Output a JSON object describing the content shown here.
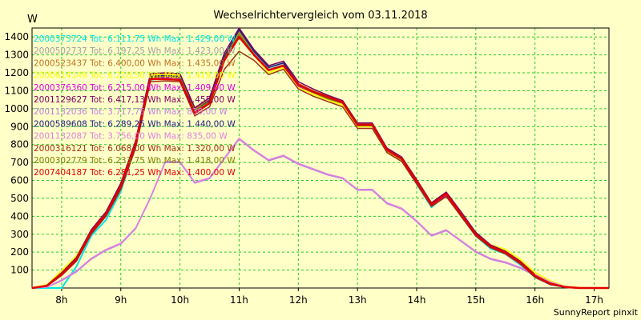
{
  "chart_data": {
    "type": "line",
    "title": "Wechselrichtervergleich vom 03.11.2018",
    "ylabel": "W",
    "xlabel": "",
    "footer": "SunnyReport pinxit",
    "xlim": [
      7.5,
      17.25
    ],
    "ylim": [
      0,
      1450
    ],
    "x_ticks": [
      {
        "value": 8,
        "label": "8h"
      },
      {
        "value": 9,
        "label": "9h"
      },
      {
        "value": 10,
        "label": "10h"
      },
      {
        "value": 11,
        "label": "11h"
      },
      {
        "value": 12,
        "label": "12h"
      },
      {
        "value": 13,
        "label": "13h"
      },
      {
        "value": 14,
        "label": "14h"
      },
      {
        "value": 15,
        "label": "15h"
      },
      {
        "value": 16,
        "label": "16h"
      },
      {
        "value": 17,
        "label": "17h"
      }
    ],
    "y_ticks": [
      100,
      200,
      300,
      400,
      500,
      600,
      700,
      800,
      900,
      1000,
      1100,
      1200,
      1300,
      1400
    ],
    "grid": true,
    "background": "#ffffc8",
    "grid_color": "#22cc22",
    "legend_position": "top-left",
    "x": [
      7.5,
      7.75,
      8.0,
      8.25,
      8.5,
      8.75,
      9.0,
      9.25,
      9.5,
      9.75,
      10.0,
      10.25,
      10.5,
      10.75,
      11.0,
      11.25,
      11.5,
      11.75,
      12.0,
      12.25,
      12.5,
      12.75,
      13.0,
      13.25,
      13.5,
      13.75,
      14.0,
      14.25,
      14.5,
      14.75,
      15.0,
      15.25,
      15.5,
      15.75,
      16.0,
      16.25,
      16.5,
      16.75,
      17.0,
      17.25
    ],
    "series": [
      {
        "name": "2000373724 Tot: 6.111,75 Wh Max: 1.429,00 W",
        "color": "#00e6e6",
        "width": 2,
        "values": [
          0,
          0,
          0,
          120,
          290,
          380,
          540,
          790,
          1160,
          1175,
          1170,
          980,
          1030,
          1280,
          1425,
          1320,
          1230,
          1255,
          1130,
          1100,
          1060,
          1040,
          910,
          915,
          770,
          720,
          580,
          450,
          520,
          400,
          290,
          220,
          190,
          130,
          60,
          20,
          5,
          0,
          0,
          0
        ]
      },
      {
        "name": "2000502737 Tot: 6.197,25 Wh Max: 1.423,00 W",
        "color": "#a0a0a0",
        "width": 1.5,
        "values": [
          0,
          10,
          75,
          150,
          300,
          400,
          560,
          800,
          1175,
          1180,
          1175,
          990,
          1040,
          1280,
          1420,
          1310,
          1220,
          1245,
          1130,
          1090,
          1060,
          1030,
          905,
          905,
          765,
          715,
          590,
          465,
          525,
          410,
          300,
          230,
          195,
          140,
          65,
          25,
          5,
          0,
          0,
          0
        ]
      },
      {
        "name": "2000523437 Tot: 6.400,00 Wh Max: 1.435,00 W",
        "color": "#c07020",
        "width": 1.5,
        "values": [
          0,
          15,
          90,
          175,
          320,
          420,
          580,
          810,
          1190,
          1195,
          1190,
          1000,
          1050,
          1300,
          1432,
          1320,
          1230,
          1255,
          1140,
          1100,
          1070,
          1040,
          915,
          915,
          775,
          725,
          600,
          470,
          530,
          420,
          305,
          235,
          205,
          145,
          75,
          30,
          8,
          0,
          0,
          0
        ]
      },
      {
        "name": "2000614149 Tot: 6.218,50 Wh Max: 1.419,00 W",
        "color": "#ffff00",
        "width": 2,
        "values": [
          0,
          18,
          95,
          180,
          310,
          405,
          570,
          800,
          1185,
          1190,
          1185,
          985,
          1035,
          1275,
          1418,
          1300,
          1200,
          1230,
          1120,
          1080,
          1050,
          1020,
          900,
          900,
          760,
          710,
          590,
          475,
          520,
          415,
          300,
          240,
          215,
          160,
          85,
          40,
          10,
          2,
          0,
          0
        ]
      },
      {
        "name": "2000376360 Tot: 6.215,00 Wh Max: 1.409,00 W",
        "color": "#e000e0",
        "width": 1.5,
        "values": [
          0,
          10,
          70,
          150,
          305,
          405,
          560,
          795,
          1170,
          1175,
          1170,
          980,
          1035,
          1270,
          1405,
          1300,
          1215,
          1240,
          1125,
          1090,
          1055,
          1030,
          905,
          905,
          765,
          715,
          585,
          455,
          515,
          400,
          295,
          225,
          190,
          135,
          60,
          20,
          5,
          0,
          0,
          0
        ]
      },
      {
        "name": "2001129627 Tot: 6.417,13 Wh Max: 1.455,00 W",
        "color": "#800060",
        "width": 1.5,
        "values": [
          0,
          15,
          85,
          170,
          325,
          425,
          585,
          820,
          1195,
          1200,
          1195,
          1005,
          1060,
          1310,
          1450,
          1330,
          1240,
          1265,
          1150,
          1110,
          1075,
          1045,
          920,
          920,
          780,
          730,
          605,
          475,
          535,
          425,
          310,
          240,
          205,
          150,
          75,
          30,
          8,
          0,
          0,
          0
        ]
      },
      {
        "name": "2001132036 Tot: 3.717,75 Wh Max: 830,00 W",
        "color": "#c080e0",
        "width": 1.5,
        "values": [
          0,
          5,
          40,
          90,
          160,
          210,
          245,
          330,
          500,
          700,
          700,
          585,
          610,
          720,
          830,
          765,
          710,
          735,
          690,
          660,
          630,
          610,
          545,
          545,
          470,
          440,
          370,
          290,
          320,
          260,
          200,
          160,
          140,
          110,
          70,
          30,
          8,
          0,
          0,
          0
        ]
      },
      {
        "name": "2000589608 Tot: 6.289,25 Wh Max: 1.440,00 W",
        "color": "#202080",
        "width": 1.5,
        "values": [
          0,
          10,
          75,
          155,
          310,
          410,
          565,
          805,
          1180,
          1185,
          1180,
          990,
          1045,
          1290,
          1440,
          1320,
          1230,
          1255,
          1135,
          1095,
          1065,
          1035,
          910,
          910,
          770,
          720,
          595,
          465,
          525,
          410,
          300,
          230,
          195,
          140,
          65,
          25,
          5,
          0,
          0,
          0
        ]
      },
      {
        "name": "2001132087 Tot: 3.756,00 Wh Max: 835,00 W",
        "color": "#e080e0",
        "width": 1.5,
        "values": [
          0,
          5,
          45,
          95,
          165,
          215,
          250,
          335,
          505,
          705,
          705,
          590,
          615,
          725,
          835,
          770,
          715,
          740,
          695,
          665,
          635,
          615,
          550,
          550,
          475,
          445,
          375,
          295,
          325,
          265,
          205,
          165,
          145,
          115,
          75,
          35,
          10,
          0,
          0,
          0
        ]
      },
      {
        "name": "2000316121 Tot: 6.068,00 Wh Max: 1.320,00 W",
        "color": "#a03010",
        "width": 1.5,
        "values": [
          0,
          10,
          70,
          150,
          300,
          400,
          550,
          780,
          1150,
          1155,
          1150,
          960,
          1010,
          1220,
          1320,
          1270,
          1190,
          1220,
          1110,
          1070,
          1040,
          1010,
          890,
          890,
          755,
          705,
          580,
          455,
          510,
          400,
          290,
          225,
          190,
          135,
          60,
          20,
          5,
          0,
          0,
          0
        ]
      },
      {
        "name": "2000302779 Tot: 6.233,75 Wh Max: 1.418,00 W",
        "color": "#808000",
        "width": 1.5,
        "values": [
          0,
          12,
          80,
          160,
          315,
          410,
          565,
          800,
          1175,
          1180,
          1175,
          990,
          1040,
          1280,
          1418,
          1305,
          1215,
          1240,
          1130,
          1090,
          1055,
          1030,
          905,
          905,
          765,
          715,
          595,
          465,
          525,
          410,
          300,
          232,
          200,
          145,
          70,
          28,
          7,
          0,
          0,
          0
        ]
      },
      {
        "name": "2007404187 Tot: 6.281,25 Wh Max: 1.400,00 W",
        "color": "#e00000",
        "width": 2.5,
        "values": [
          0,
          12,
          78,
          158,
          315,
          412,
          568,
          805,
          1165,
          1165,
          1160,
          975,
          1030,
          1270,
          1400,
          1300,
          1215,
          1240,
          1135,
          1095,
          1065,
          1035,
          910,
          910,
          770,
          720,
          595,
          465,
          525,
          410,
          300,
          232,
          198,
          142,
          68,
          25,
          6,
          0,
          0,
          0
        ]
      }
    ]
  }
}
